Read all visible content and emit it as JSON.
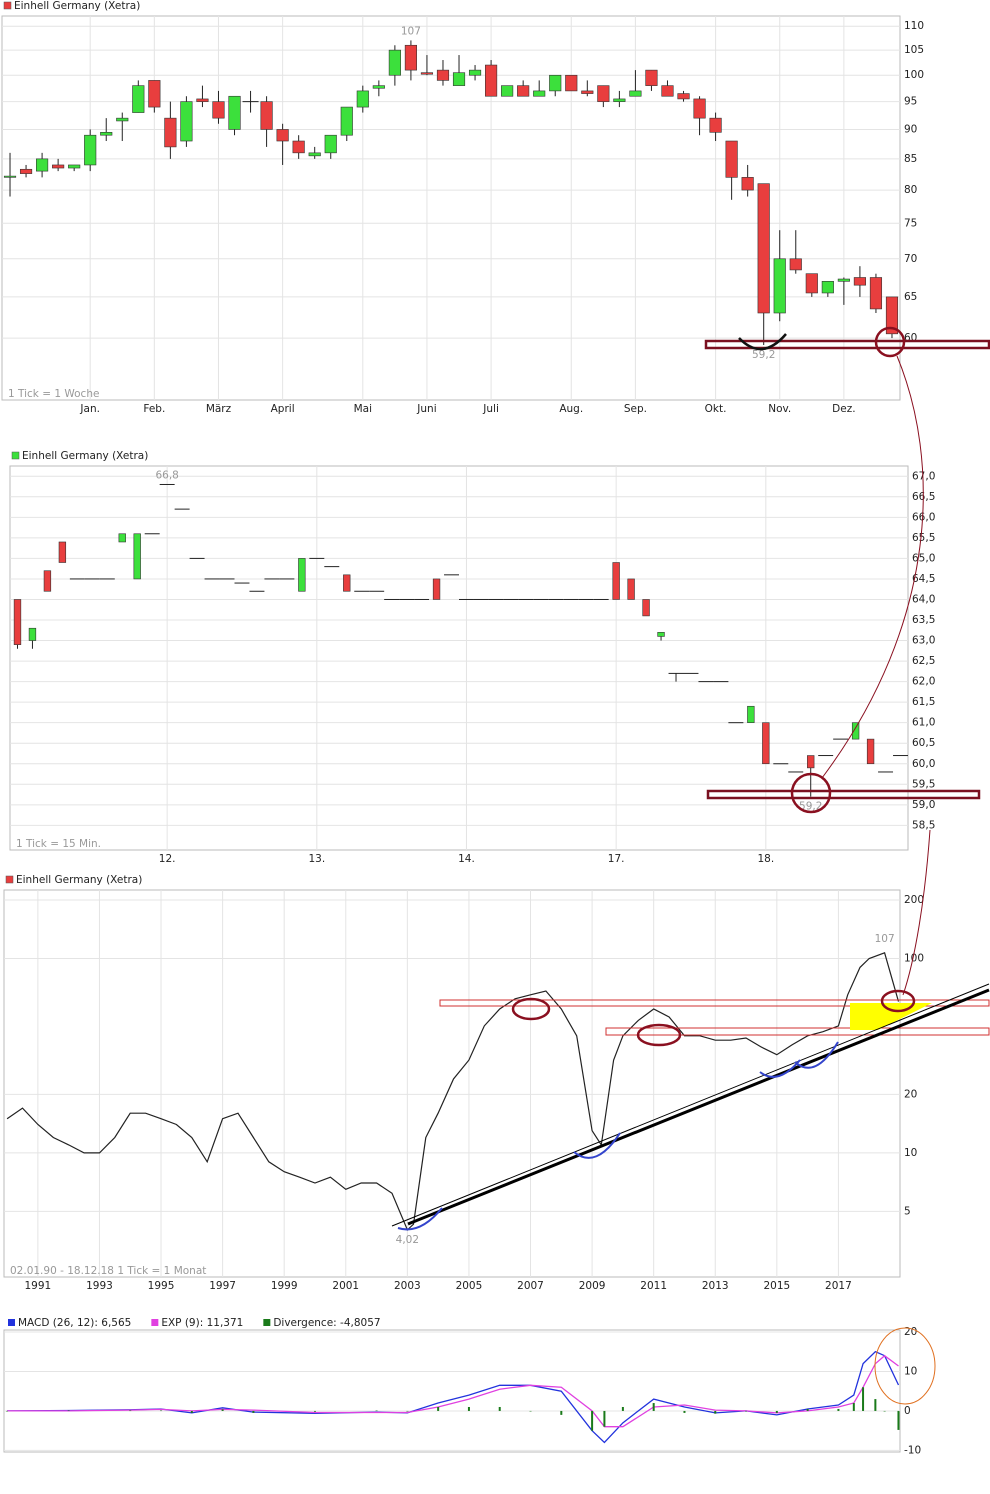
{
  "chart_data": [
    {
      "type": "candlestick",
      "title": "Einhell Germany (Xetra)",
      "title_marker_color": "#e83e3e",
      "color_up": "#3ce03c",
      "color_down": "#e83e3e",
      "log": true,
      "grid": true,
      "note": "1 Tick = 1 Woche",
      "max_label": "107",
      "min_label": "59,2",
      "open": [
        82,
        83.3,
        83,
        84,
        83.5,
        84,
        89,
        91.5,
        93,
        99,
        92,
        88,
        95.5,
        95,
        90,
        95,
        95,
        90,
        88,
        85.5,
        86,
        89,
        94,
        97.5,
        100,
        106,
        100.5,
        101,
        98,
        100,
        102,
        96,
        98,
        96,
        97,
        100,
        97,
        98,
        95,
        96,
        101,
        98,
        96.5,
        95.5,
        92,
        88,
        82,
        81,
        63,
        70,
        68,
        65.5,
        67,
        67.5,
        67.5,
        65
      ],
      "high": [
        86,
        84,
        86,
        85,
        84,
        90,
        92,
        93,
        99,
        99,
        95,
        96,
        98,
        97,
        96,
        97,
        96,
        91,
        89,
        87,
        89,
        94,
        98,
        99,
        106,
        107,
        104,
        103,
        104,
        102,
        103,
        98,
        99,
        99,
        100,
        100,
        99,
        98,
        97,
        101,
        101,
        99,
        97,
        96,
        93,
        88,
        84,
        81,
        74,
        74,
        68,
        67,
        67.5,
        69,
        68,
        65
      ],
      "low": [
        79,
        82,
        82,
        83,
        83,
        83,
        88,
        88,
        93,
        93,
        85,
        87,
        94,
        91,
        89,
        93,
        87,
        84,
        85,
        85,
        85,
        88,
        93,
        96,
        98,
        99,
        100,
        98,
        98,
        99,
        96,
        96,
        96,
        96,
        96,
        97,
        96,
        94,
        94,
        96,
        97,
        96,
        95,
        89,
        88,
        78.5,
        79,
        59.2,
        62,
        68,
        65,
        65,
        64,
        65,
        63,
        60
      ],
      "close": [
        82.2,
        82.6,
        85,
        83.5,
        84,
        89,
        89.5,
        92,
        98,
        94,
        87,
        95,
        95,
        92,
        96,
        95,
        90,
        88,
        86,
        86,
        89,
        94,
        97,
        98,
        105,
        101,
        100.2,
        99,
        100.5,
        101,
        96,
        98,
        96,
        97,
        100,
        97,
        96.5,
        95,
        95.5,
        97,
        98,
        96,
        95.5,
        92,
        89.5,
        82,
        80,
        63,
        70,
        68.5,
        65.5,
        67,
        67.3,
        66.5,
        63.5,
        60.5
      ],
      "ylim": [
        53.2,
        112.2
      ],
      "yticks": [
        60,
        65,
        70,
        75,
        80,
        85,
        90,
        95,
        100,
        105,
        110
      ],
      "xticks": [
        {
          "value": 5,
          "label": "Jan."
        },
        {
          "value": 9,
          "label": "Feb."
        },
        {
          "value": 13,
          "label": "März"
        },
        {
          "value": 17,
          "label": "April"
        },
        {
          "value": 22,
          "label": "Mai"
        },
        {
          "value": 26,
          "label": "Juni"
        },
        {
          "value": 30,
          "label": "Juli"
        },
        {
          "value": 35,
          "label": "Aug."
        },
        {
          "value": 39,
          "label": "Sep."
        },
        {
          "value": 44,
          "label": "Okt."
        },
        {
          "value": 48,
          "label": "Nov."
        },
        {
          "value": 52,
          "label": "Dez."
        }
      ]
    },
    {
      "type": "candlestick",
      "title": "Einhell Germany (Xetra)",
      "title_marker_color": "#3ce03c",
      "color_up": "#3ce03c",
      "color_down": "#e83e3e",
      "log": false,
      "grid": true,
      "note": "1 Tick = 15 Min.",
      "max_label": "66,8",
      "min_label": "59,2",
      "open": [
        64,
        63,
        64.7,
        65.4,
        64.5,
        64.5,
        64.5,
        65.4,
        64.5,
        65.6,
        66.8,
        66.2,
        65,
        64.5,
        64.5,
        64.4,
        64.2,
        64.5,
        64.5,
        64.2,
        65,
        64.8,
        64.6,
        64.2,
        64.2,
        64,
        64,
        64,
        64.5,
        64.6,
        64,
        64,
        64,
        64,
        64,
        64,
        64,
        64,
        64,
        64,
        64.9,
        64.5,
        64,
        63.1,
        62.2,
        62.2,
        62,
        62,
        61,
        61,
        61,
        60,
        59.8,
        60.2,
        60.2,
        60.6,
        60.6,
        60.6,
        59.8,
        60.2
      ],
      "high": [
        64,
        63.3,
        64.7,
        65.4,
        64.5,
        64.5,
        64.5,
        65.6,
        65.6,
        65.6,
        66.8,
        66.2,
        65,
        64.5,
        64.5,
        64.4,
        64.2,
        64.5,
        64.5,
        65,
        65,
        64.8,
        64.6,
        64.2,
        64.2,
        64,
        64,
        64,
        64.5,
        64.6,
        64,
        64,
        64,
        64,
        64,
        64,
        64,
        64,
        64,
        64,
        64.9,
        64.5,
        64,
        63.2,
        62.2,
        62.2,
        62,
        62,
        61,
        61.4,
        61,
        60,
        59.8,
        60.2,
        60.2,
        60.6,
        61,
        60.6,
        59.8,
        60.2
      ],
      "low": [
        62.8,
        62.8,
        64.2,
        64.9,
        64.5,
        64.5,
        64.5,
        65.4,
        64.5,
        65.6,
        66.8,
        66.2,
        65,
        64.5,
        64.5,
        64.4,
        64.2,
        64.5,
        64.5,
        64.2,
        65,
        64.8,
        64.2,
        64.2,
        64.2,
        64,
        64,
        64,
        64,
        64.6,
        64,
        64,
        64,
        64,
        64,
        64,
        64,
        64,
        64,
        64,
        64,
        64,
        63.6,
        63,
        62,
        62.2,
        62,
        62,
        61,
        61,
        60,
        60,
        59.8,
        59.2,
        60.2,
        60.6,
        60.6,
        60,
        59.8,
        60.2
      ],
      "close": [
        62.9,
        63.3,
        64.2,
        64.9,
        64.5,
        64.5,
        64.5,
        65.6,
        65.6,
        65.6,
        66.8,
        66.2,
        65,
        64.5,
        64.5,
        64.4,
        64.2,
        64.5,
        64.5,
        65,
        65,
        64.8,
        64.2,
        64.2,
        64.2,
        64,
        64,
        64,
        64,
        64.6,
        64,
        64,
        64,
        64,
        64,
        64,
        64,
        64,
        64,
        64,
        64,
        64,
        63.6,
        63.2,
        62.2,
        62.2,
        62,
        62,
        61,
        61.4,
        60,
        60,
        59.8,
        59.9,
        60.2,
        60.6,
        61,
        60,
        59.8,
        60.2
      ],
      "ylim": [
        57.9,
        67.25
      ],
      "yticks": [
        {
          "value": 58.5,
          "label": "58,5"
        },
        {
          "value": 59,
          "label": "59,0"
        },
        {
          "value": 59.5,
          "label": "59,5"
        },
        {
          "value": 60,
          "label": "60,0"
        },
        {
          "value": 60.5,
          "label": "60,5"
        },
        {
          "value": 61,
          "label": "61,0"
        },
        {
          "value": 61.5,
          "label": "61,5"
        },
        {
          "value": 62,
          "label": "62,0"
        },
        {
          "value": 62.5,
          "label": "62,5"
        },
        {
          "value": 63,
          "label": "63,0"
        },
        {
          "value": 63.5,
          "label": "63,5"
        },
        {
          "value": 64,
          "label": "64,0"
        },
        {
          "value": 64.5,
          "label": "64,5"
        },
        {
          "value": 65,
          "label": "65,0"
        },
        {
          "value": 65.5,
          "label": "65,5"
        },
        {
          "value": 66,
          "label": "66,0"
        },
        {
          "value": 66.5,
          "label": "66,5"
        },
        {
          "value": 67,
          "label": "67,0"
        }
      ],
      "xticks": [
        {
          "value": 10,
          "label": "12."
        },
        {
          "value": 20,
          "label": "13."
        },
        {
          "value": 30,
          "label": "14."
        },
        {
          "value": 40,
          "label": "17."
        },
        {
          "value": 50,
          "label": "18."
        }
      ]
    },
    {
      "type": "line",
      "title": "Einhell Germany (Xetra)",
      "title_marker_color": "#e83e3e",
      "color": "#222222",
      "log": true,
      "grid": true,
      "note": "02.01.90 - 18.12.18   1 Tick = 1 Monat",
      "max_label": "107",
      "min_label": "4,02",
      "x": [
        1990,
        1990.5,
        1991,
        1991.5,
        1992,
        1992.5,
        1993,
        1993.5,
        1994,
        1994.5,
        1995,
        1995.5,
        1996,
        1996.5,
        1997,
        1997.5,
        1998,
        1998.5,
        1999,
        1999.5,
        2000,
        2000.5,
        2001,
        2001.5,
        2002,
        2002.5,
        2003,
        2003.2,
        2003.6,
        2004,
        2004.5,
        2005,
        2005.5,
        2006,
        2006.5,
        2007,
        2007.5,
        2008,
        2008.5,
        2009,
        2009.3,
        2009.7,
        2010,
        2010.5,
        2011,
        2011.5,
        2012,
        2012.5,
        2013,
        2013.5,
        2014,
        2014.5,
        2015,
        2015.5,
        2016,
        2016.5,
        2017,
        2017.3,
        2017.7,
        2018,
        2018.5,
        2018.95
      ],
      "values": [
        15,
        17,
        14,
        12,
        11,
        10,
        10,
        12,
        16,
        16,
        15,
        14,
        12,
        9,
        15,
        16,
        12,
        9,
        8,
        7.5,
        7,
        7.5,
        6.5,
        7,
        7,
        6.2,
        4.02,
        4.3,
        12,
        16,
        24,
        30,
        45,
        55,
        62,
        65,
        68,
        55,
        40,
        13,
        11,
        30,
        40,
        48,
        55,
        50,
        40,
        40,
        38,
        38,
        39,
        35,
        32,
        36,
        40,
        42,
        45,
        65,
        90,
        100,
        107,
        60
      ],
      "xlim": [
        1989.9,
        2019.0
      ],
      "ylim": [
        2.3,
        225
      ],
      "yticks": [
        5,
        10,
        20,
        100,
        200
      ],
      "xticks": [
        1991,
        1993,
        1995,
        1997,
        1999,
        2001,
        2003,
        2005,
        2007,
        2009,
        2011,
        2013,
        2015,
        2017
      ]
    },
    {
      "type": "line",
      "log": false,
      "grid": true,
      "x": [
        1990,
        1992,
        1994,
        1995,
        1996,
        1997,
        1998,
        2000,
        2002,
        2003,
        2004,
        2005,
        2006,
        2007,
        2008,
        2009,
        2009.4,
        2010,
        2011,
        2012,
        2013,
        2014,
        2015,
        2016,
        2017,
        2017.5,
        2017.8,
        2018.2,
        2018.5,
        2018.95
      ],
      "series": [
        {
          "name": "MACD (26, 12): 6,565",
          "color": "#2233dd",
          "values": [
            0,
            0.1,
            0.3,
            0.5,
            -0.5,
            0.8,
            -0.3,
            -0.6,
            -0.3,
            -0.5,
            2,
            4,
            6.5,
            6.5,
            5,
            -5,
            -8,
            -3,
            3,
            1,
            -0.5,
            0,
            -1,
            0.5,
            1.5,
            4,
            12,
            15,
            14,
            6.565
          ]
        },
        {
          "name": "EXP (9): 11,371",
          "color": "#e040e0",
          "values": [
            0,
            0,
            0.2,
            0.4,
            0,
            0.4,
            0.2,
            -0.4,
            -0.4,
            -0.4,
            1,
            3,
            5.5,
            6.5,
            6,
            0,
            -4,
            -4,
            1,
            1.5,
            0.2,
            0,
            -0.5,
            0,
            1,
            2,
            6,
            12,
            14,
            11.371
          ]
        },
        {
          "name": "Divergence: -4,8057",
          "color": "#1a7a1a",
          "style": "bar",
          "values": [
            0,
            0.1,
            0.1,
            0.1,
            -0.5,
            0.4,
            -0.5,
            -0.2,
            0.1,
            -0.1,
            1,
            1,
            1,
            0,
            -1,
            -5,
            -4,
            1,
            2,
            -0.5,
            -0.7,
            0,
            -0.5,
            0.5,
            0.5,
            2,
            6,
            3,
            0,
            -4.8057
          ]
        }
      ],
      "xlim": [
        1989.9,
        2019.0
      ],
      "ylim": [
        -10.4,
        20.5
      ],
      "yticks": [
        -10,
        0,
        10,
        20
      ]
    }
  ]
}
